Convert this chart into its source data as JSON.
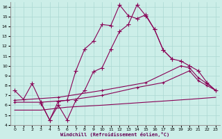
{
  "xlabel": "Windchill (Refroidissement éolien,°C)",
  "background_color": "#cceee8",
  "grid_color": "#aad8d2",
  "line_color": "#880055",
  "xlim": [
    -0.5,
    23.5
  ],
  "ylim": [
    4,
    16.5
  ],
  "xticks": [
    0,
    1,
    2,
    3,
    4,
    5,
    6,
    7,
    8,
    9,
    10,
    11,
    12,
    13,
    14,
    15,
    16,
    17,
    18,
    19,
    20,
    21,
    22,
    23
  ],
  "yticks": [
    4,
    5,
    6,
    7,
    8,
    9,
    10,
    11,
    12,
    13,
    14,
    15,
    16
  ],
  "series": [
    {
      "x": [
        0,
        1,
        2,
        3,
        4,
        5,
        6,
        7,
        8,
        9,
        10,
        11,
        12,
        13,
        14,
        15,
        16,
        17,
        18,
        19,
        20,
        21,
        22,
        23
      ],
      "y": [
        7.5,
        6.6,
        8.2,
        6.3,
        4.5,
        6.4,
        6.5,
        9.5,
        11.7,
        12.5,
        14.2,
        14.1,
        16.2,
        15.1,
        14.8,
        15.2,
        13.7,
        11.6,
        10.7,
        10.5,
        10.0,
        9.5,
        8.3,
        7.5
      ],
      "marker": "+",
      "markersize": 4,
      "linewidth": 0.8,
      "linestyle": "-"
    },
    {
      "x": [
        3,
        4,
        5,
        6,
        7,
        8,
        9,
        10,
        11,
        12,
        13,
        14,
        15,
        16,
        17,
        18,
        19,
        20,
        21,
        22,
        23
      ],
      "y": [
        6.2,
        4.5,
        6.0,
        4.5,
        6.5,
        7.5,
        9.4,
        9.8,
        11.7,
        13.5,
        14.2,
        16.2,
        15.1,
        13.7,
        11.6,
        10.7,
        null,
        null,
        null,
        null,
        null
      ],
      "marker": "+",
      "markersize": 4,
      "linewidth": 0.8,
      "linestyle": "-"
    },
    {
      "x": [
        0,
        3,
        6,
        10,
        15,
        20,
        23
      ],
      "y": [
        5.5,
        5.5,
        5.8,
        6.0,
        6.3,
        6.6,
        6.8
      ],
      "marker": null,
      "markersize": 0,
      "linewidth": 0.8,
      "linestyle": "-"
    },
    {
      "x": [
        0,
        3,
        6,
        10,
        14,
        17,
        20,
        21,
        22,
        23
      ],
      "y": [
        6.3,
        6.3,
        6.5,
        7.0,
        7.8,
        8.3,
        9.5,
        8.5,
        8.0,
        7.5
      ],
      "marker": "+",
      "markersize": 3,
      "linewidth": 0.8,
      "linestyle": "-"
    },
    {
      "x": [
        0,
        5,
        10,
        15,
        19,
        20,
        21,
        22,
        23
      ],
      "y": [
        6.5,
        6.8,
        7.5,
        8.3,
        10.0,
        9.8,
        8.8,
        8.2,
        7.5
      ],
      "marker": "+",
      "markersize": 3,
      "linewidth": 0.8,
      "linestyle": "-"
    }
  ]
}
